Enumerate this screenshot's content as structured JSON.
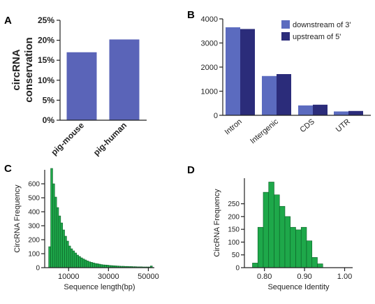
{
  "panels": [
    {
      "letter": "A"
    },
    {
      "letter": "B"
    },
    {
      "letter": "C"
    },
    {
      "letter": "D"
    }
  ],
  "colors": {
    "bar_blue": "#5a64b8",
    "series_light": "#5b6bbf",
    "series_dark": "#2b2c7a",
    "hist_green": "#1ea84a",
    "hist_edge": "#0b5e26",
    "axis": "#222222"
  },
  "chart_data": [
    {
      "panel": "A",
      "type": "bar",
      "categories": [
        "pig-mouse",
        "pig-human"
      ],
      "values": [
        17,
        20.2
      ],
      "ylabel_lines": [
        "circRNA",
        "conservation"
      ],
      "xlabel": "",
      "ylim": [
        0,
        25
      ],
      "yticks": [
        0,
        5,
        10,
        15,
        20,
        25
      ],
      "ytick_labels": [
        "0%",
        "5%",
        "10%",
        "15%",
        "20%",
        "25%"
      ],
      "grid": false
    },
    {
      "panel": "B",
      "type": "bar",
      "categories": [
        "Intron",
        "Intergenic",
        "CDS",
        "UTR"
      ],
      "series": [
        {
          "name": "downstream of 3'",
          "values": [
            3650,
            1630,
            410,
            160
          ]
        },
        {
          "name": "upstream of 5'",
          "values": [
            3580,
            1710,
            440,
            180
          ]
        }
      ],
      "ylim": [
        0,
        4000
      ],
      "yticks": [
        0,
        1000,
        2000,
        3000,
        4000
      ],
      "ytick_labels": [
        "0",
        "1000",
        "2000",
        "3000",
        "4000"
      ],
      "legend": "top-right",
      "grid": false
    },
    {
      "panel": "C",
      "type": "bar",
      "subtype": "histogram",
      "xlabel": "Sequence length(bp)",
      "ylabel": "CircRNA Frequency",
      "bin_start": 0,
      "bin_width": 1000,
      "values": [
        150,
        710,
        600,
        505,
        430,
        370,
        320,
        270,
        225,
        190,
        155,
        135,
        120,
        105,
        90,
        80,
        70,
        62,
        55,
        48,
        42,
        38,
        34,
        30,
        28,
        25,
        22,
        20,
        19,
        18,
        16,
        15,
        14,
        13,
        12,
        11,
        10,
        10,
        9,
        9,
        8,
        8,
        7,
        7,
        6,
        6,
        6,
        5,
        5,
        5,
        5,
        12
      ],
      "xlim": [
        -2000,
        53000
      ],
      "ylim": [
        0,
        700
      ],
      "xticks": [
        10000,
        30000,
        50000
      ],
      "xtick_labels": [
        "10000",
        "30000",
        "50000"
      ],
      "yticks": [
        0,
        100,
        200,
        300,
        400,
        500,
        600
      ],
      "ytick_labels": [
        "0",
        "100",
        "200",
        "300",
        "400",
        "500",
        "600"
      ],
      "grid": false
    },
    {
      "panel": "D",
      "type": "bar",
      "subtype": "histogram",
      "xlabel": "Sequence Identity",
      "ylabel": "CircRNA Frequency",
      "bin_start": 0.77,
      "bin_width": 0.0135,
      "values": [
        18,
        158,
        295,
        335,
        285,
        240,
        200,
        158,
        148,
        158,
        105,
        40,
        15
      ],
      "xlim": [
        0.75,
        1.02
      ],
      "ylim": [
        0,
        350
      ],
      "xticks": [
        0.8,
        0.9,
        1.0
      ],
      "xtick_labels": [
        "0.80",
        "0.90",
        "1.00"
      ],
      "yticks": [
        0,
        50,
        100,
        150,
        200,
        250
      ],
      "ytick_labels": [
        "0",
        "50",
        "100",
        "150",
        "200",
        "250"
      ],
      "grid": false
    }
  ]
}
